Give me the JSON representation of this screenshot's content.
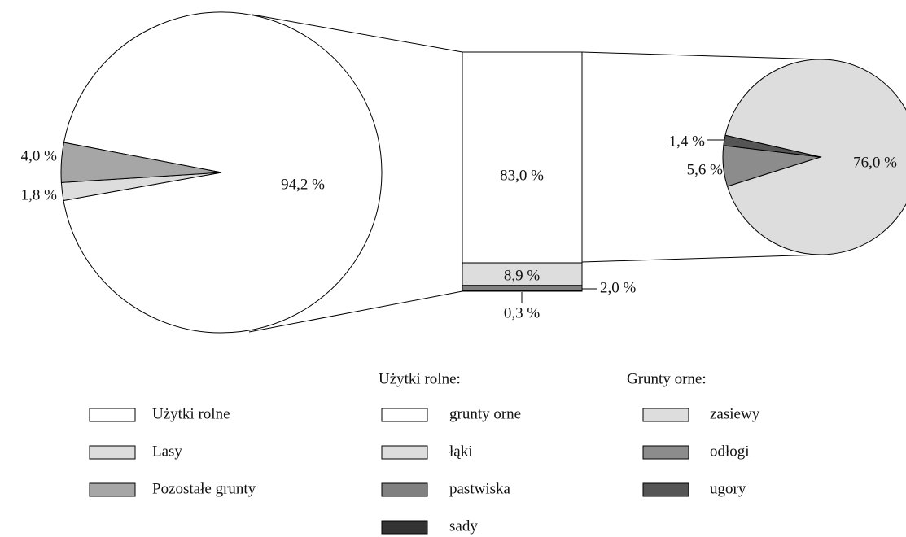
{
  "chart_data": [
    {
      "type": "pie",
      "categories": [
        "Użytki rolne",
        "Lasy",
        "Pozostałe grunty"
      ],
      "values": [
        94.2,
        1.8,
        4.0
      ],
      "value_labels": [
        "94,2 %",
        "1,8 %",
        "4,0 %"
      ],
      "colors": [
        "#ffffff",
        "#dddddd",
        "#a6a6a6"
      ]
    },
    {
      "type": "bar",
      "legend_title": "Użytki rolne:",
      "categories": [
        "grunty orne",
        "łąki",
        "pastwiska",
        "sady"
      ],
      "values": [
        83.0,
        8.9,
        2.0,
        0.3
      ],
      "value_labels": [
        "83,0 %",
        "8,9 %",
        "2,0 %",
        "0,3 %"
      ],
      "colors": [
        "#ffffff",
        "#dddddd",
        "#808080",
        "#333333"
      ]
    },
    {
      "type": "pie",
      "legend_title": "Grunty orne:",
      "categories": [
        "zasiewy",
        "odłogi",
        "ugory"
      ],
      "values": [
        76.0,
        5.6,
        1.4
      ],
      "value_labels": [
        "76,0 %",
        "5,6 %",
        "1,4 %"
      ],
      "colors": [
        "#dddddd",
        "#8c8c8c",
        "#555555"
      ]
    }
  ]
}
